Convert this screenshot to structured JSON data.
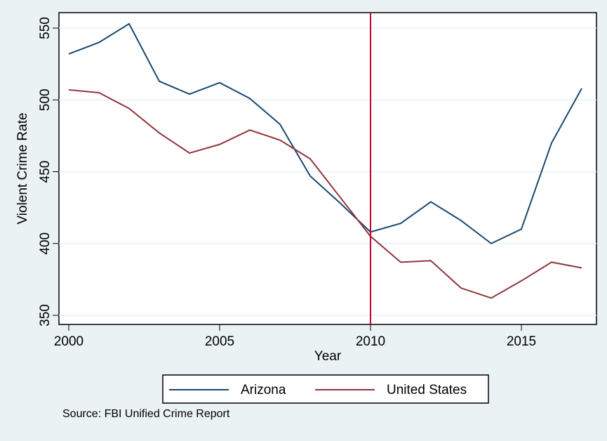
{
  "chart_data": {
    "type": "line",
    "xlabel": "Year",
    "ylabel": "Violent Crime Rate",
    "xlim": [
      2000,
      2017
    ],
    "ylim": [
      350,
      550
    ],
    "x_ticks": [
      "2000",
      "2005",
      "2010",
      "2015"
    ],
    "y_ticks": [
      "350",
      "400",
      "450",
      "500",
      "550"
    ],
    "grid": "horizontal",
    "legend_position": "bottom",
    "x": [
      2000,
      2001,
      2002,
      2003,
      2004,
      2005,
      2006,
      2007,
      2008,
      2009,
      2010,
      2011,
      2012,
      2013,
      2014,
      2015,
      2016,
      2017
    ],
    "series": [
      {
        "name": "Arizona",
        "color": "#1a476f",
        "values": [
          532,
          540,
          553,
          513,
          504,
          512,
          501,
          483,
          447,
          428,
          408,
          414,
          429,
          416,
          400,
          410,
          470,
          508
        ]
      },
      {
        "name": "United States",
        "color": "#90353b",
        "values": [
          507,
          505,
          494,
          477,
          463,
          469,
          479,
          472,
          459,
          432,
          405,
          387,
          388,
          369,
          362,
          374,
          387,
          383
        ]
      }
    ],
    "reference_line": {
      "x": 2010,
      "color": "#c10534"
    },
    "note": "Source: FBI Unified Crime Report"
  }
}
